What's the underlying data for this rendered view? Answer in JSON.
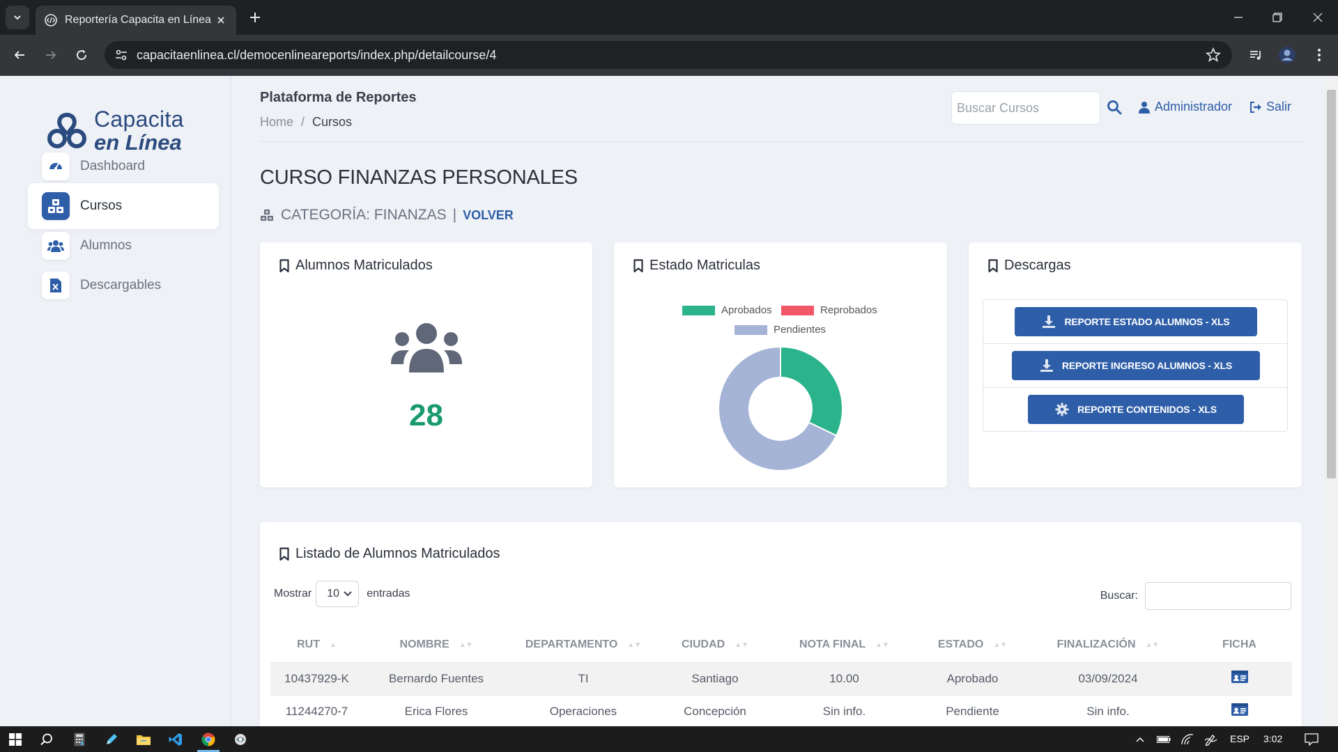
{
  "browser": {
    "tab_title": "Reportería Capacita en Línea",
    "url": "capacitaenlinea.cl/democenlineareports/index.php/detailcourse/4"
  },
  "sidebar": {
    "logo_line1": "Capacita",
    "logo_line2": "en Línea",
    "items": [
      {
        "label": "Dashboard",
        "icon": "gauge-icon"
      },
      {
        "label": "Cursos",
        "icon": "cubes-icon",
        "active": true
      },
      {
        "label": "Alumnos",
        "icon": "users-icon"
      },
      {
        "label": "Descargables",
        "icon": "excel-file-icon"
      }
    ]
  },
  "header": {
    "app_title": "Plataforma de Reportes",
    "breadcrumb_home": "Home",
    "breadcrumb_separator": "/",
    "breadcrumb_current": "Cursos",
    "search_placeholder": "Buscar Cursos",
    "user_label": "Administrador",
    "logout_label": "Salir"
  },
  "course": {
    "title": "CURSO FINANZAS PERSONALES",
    "category": "CATEGORÍA: FINANZAS",
    "separator": "|",
    "back_label": "VOLVER"
  },
  "cards": {
    "enrolled": {
      "title": "Alumnos Matriculados",
      "count": "28"
    },
    "status": {
      "title": "Estado Matriculas"
    },
    "downloads": {
      "title": "Descargas",
      "buttons": [
        {
          "label": "REPORTE ESTADO ALUMNOS - XLS",
          "icon": "download-icon"
        },
        {
          "label": "REPORTE INGRESO ALUMNOS - XLS",
          "icon": "download-icon"
        },
        {
          "label": "REPORTE CONTENIDOS - XLS",
          "icon": "gear-icon"
        }
      ]
    }
  },
  "chart_data": {
    "type": "doughnut",
    "legend_position": "top",
    "categories": [
      "Aprobados",
      "Reprobados",
      "Pendientes"
    ],
    "values": [
      9,
      0,
      19
    ],
    "colors": [
      "#2bb38b",
      "#f25767",
      "#a5b4d6"
    ]
  },
  "student_list": {
    "title": "Listado de Alumnos Matriculados",
    "show_label": "Mostrar",
    "page_size": "10",
    "entries_label": "entradas",
    "search_label": "Buscar:",
    "columns": [
      "RUT",
      "NOMBRE",
      "DEPARTAMENTO",
      "CIUDAD",
      "NOTA FINAL",
      "ESTADO",
      "FINALIZACIÓN",
      "FICHA"
    ],
    "rows": [
      [
        "10437929-K",
        "Bernardo Fuentes",
        "TI",
        "Santiago",
        "10.00",
        "Aprobado",
        "03/09/2024"
      ],
      [
        "11244270-7",
        "Erica Flores",
        "Operaciones",
        "Concepción",
        "Sin info.",
        "Pendiente",
        "Sin info."
      ]
    ]
  },
  "taskbar": {
    "language": "ESP",
    "time": "3:02"
  },
  "colors": {
    "brand": "#2e5ea8",
    "count_green": "#1a9b6e",
    "page_bg": "#eef1f6"
  }
}
